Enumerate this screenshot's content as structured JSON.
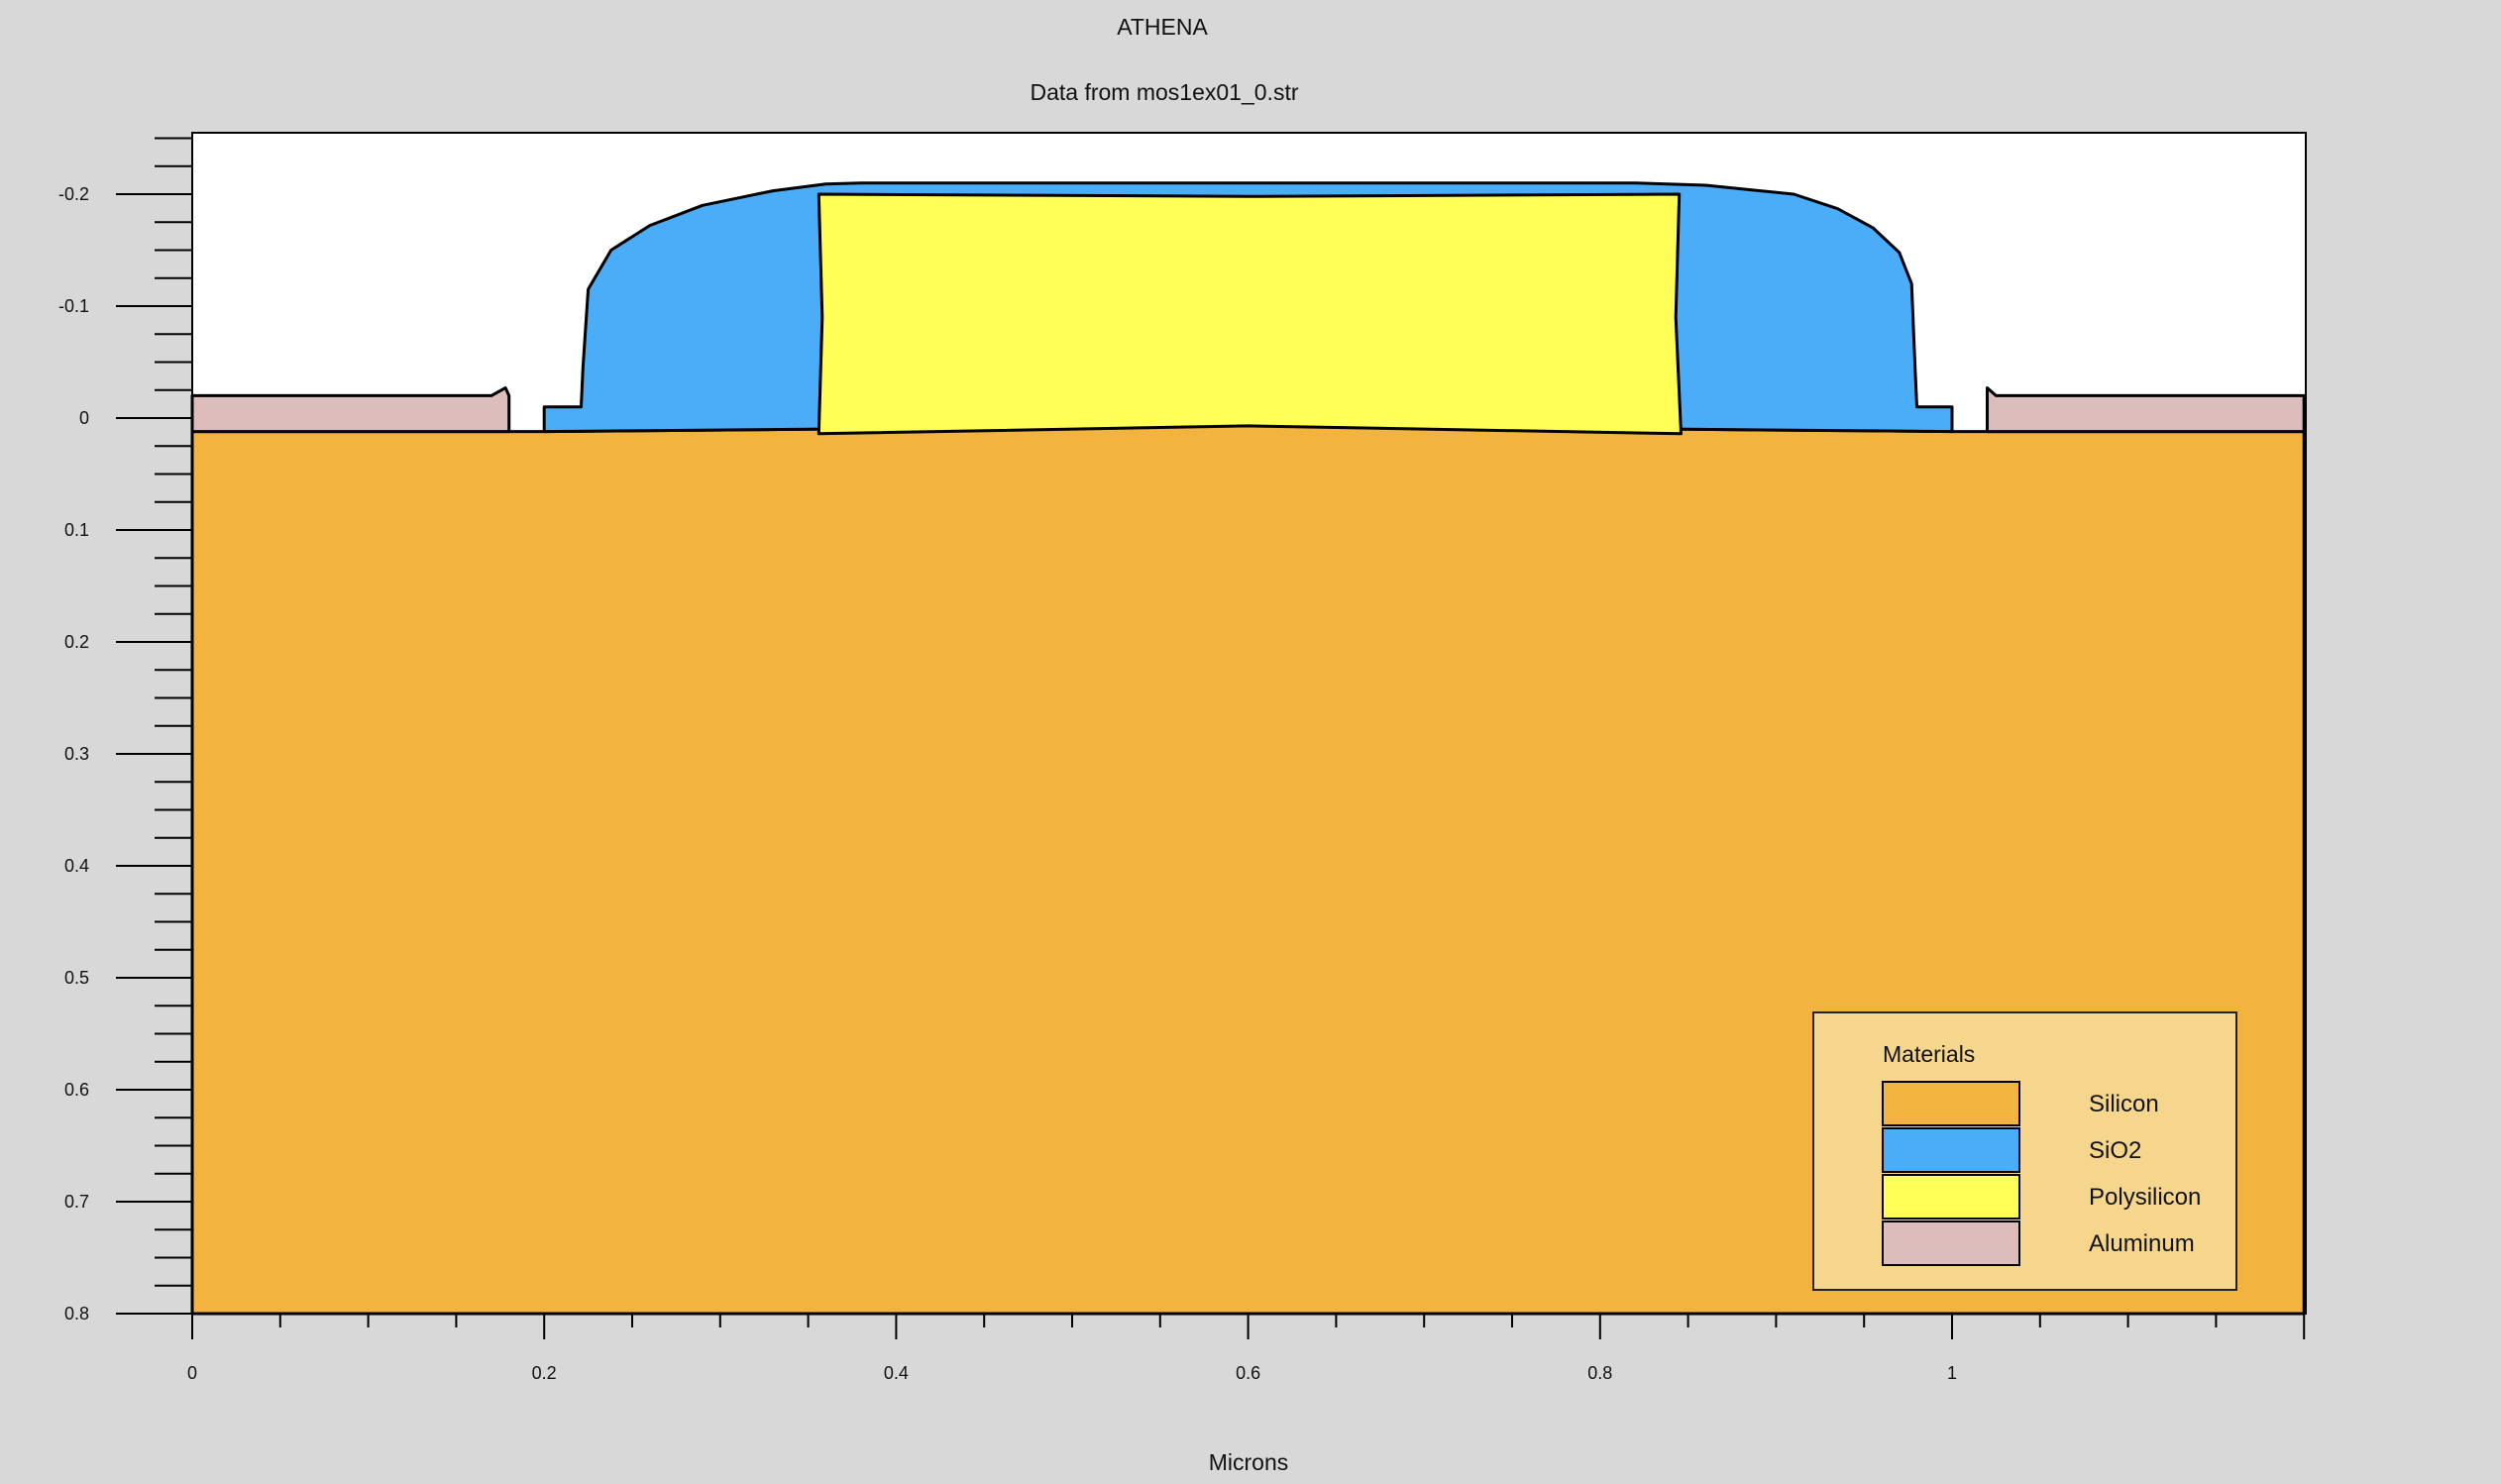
{
  "chart_data": {
    "type": "area",
    "title": "ATHENA",
    "subtitle": "Data from mos1ex01_0.str",
    "xlabel": "Microns",
    "ylabel": "",
    "xlim": [
      0,
      1.2
    ],
    "ylim": [
      -0.255,
      0.8
    ],
    "y_inverted": true,
    "x_ticks": [
      0,
      0.2,
      0.4,
      0.6,
      0.8,
      1
    ],
    "x_tick_labels": [
      "0",
      "0.2",
      "0.4",
      "0.6",
      "0.8",
      "1"
    ],
    "y_ticks": [
      -0.2,
      -0.1,
      0,
      0.1,
      0.2,
      0.3,
      0.4,
      0.5,
      0.6,
      0.7,
      0.8
    ],
    "y_tick_labels": [
      "-0.2",
      "-0.1",
      "0",
      "0.1",
      "0.2",
      "0.3",
      "0.4",
      "0.5",
      "0.6",
      "0.7",
      "0.8"
    ],
    "grid": false,
    "legend": {
      "title": "Materials",
      "placement": "bottom-right",
      "entries": [
        {
          "label": "Silicon",
          "color": "#f2b43e"
        },
        {
          "label": "SiO2",
          "color": "#4badf7"
        },
        {
          "label": "Polysilicon",
          "color": "#ffff57"
        },
        {
          "label": "Aluminum",
          "color": "#dcbdbb"
        }
      ]
    },
    "regions": [
      {
        "material": "Silicon",
        "color": "#f2b43e",
        "points": [
          [
            0,
            0.8
          ],
          [
            0,
            0.012
          ],
          [
            0.2,
            0.012
          ],
          [
            0.35,
            0.01
          ],
          [
            0.5,
            0.007
          ],
          [
            0.6,
            0.006
          ],
          [
            0.7,
            0.007
          ],
          [
            0.85,
            0.01
          ],
          [
            1.0,
            0.012
          ],
          [
            1.2,
            0.012
          ],
          [
            1.2,
            0.8
          ]
        ]
      },
      {
        "material": "SiO2",
        "color": "#4badf7",
        "points": [
          [
            0.2,
            0.012
          ],
          [
            0.2,
            -0.01
          ],
          [
            0.221,
            -0.01
          ],
          [
            0.222,
            -0.045
          ],
          [
            0.225,
            -0.115
          ],
          [
            0.238,
            -0.15
          ],
          [
            0.26,
            -0.172
          ],
          [
            0.29,
            -0.19
          ],
          [
            0.33,
            -0.203
          ],
          [
            0.36,
            -0.209
          ],
          [
            0.38,
            -0.21
          ],
          [
            0.6,
            -0.21
          ],
          [
            0.82,
            -0.21
          ],
          [
            0.86,
            -0.208
          ],
          [
            0.91,
            -0.2
          ],
          [
            0.935,
            -0.187
          ],
          [
            0.955,
            -0.17
          ],
          [
            0.97,
            -0.148
          ],
          [
            0.977,
            -0.12
          ],
          [
            0.979,
            -0.045
          ],
          [
            0.98,
            -0.01
          ],
          [
            1.0,
            -0.01
          ],
          [
            1.0,
            0.012
          ],
          [
            0.85,
            0.01
          ],
          [
            0.7,
            0.007
          ],
          [
            0.6,
            0.006
          ],
          [
            0.5,
            0.007
          ],
          [
            0.35,
            0.01
          ]
        ]
      },
      {
        "material": "Polysilicon",
        "color": "#ffff57",
        "points": [
          [
            0.356,
            -0.2
          ],
          [
            0.6,
            -0.198
          ],
          [
            0.845,
            -0.2
          ],
          [
            0.843,
            -0.09
          ],
          [
            0.846,
            0.014
          ],
          [
            0.6,
            0.007
          ],
          [
            0.356,
            0.014
          ],
          [
            0.358,
            -0.09
          ]
        ]
      },
      {
        "material": "Aluminum",
        "color": "#dcbdbb",
        "points": [
          [
            0,
            0.012
          ],
          [
            0,
            -0.02
          ],
          [
            0.17,
            -0.02
          ],
          [
            0.178,
            -0.027
          ],
          [
            0.18,
            -0.02
          ],
          [
            0.18,
            0.012
          ]
        ]
      },
      {
        "material": "Aluminum",
        "color": "#dcbdbb",
        "points": [
          [
            1.02,
            0.012
          ],
          [
            1.02,
            -0.027
          ],
          [
            1.025,
            -0.02
          ],
          [
            1.03,
            -0.02
          ],
          [
            1.2,
            -0.02
          ],
          [
            1.2,
            0.012
          ]
        ]
      }
    ]
  }
}
